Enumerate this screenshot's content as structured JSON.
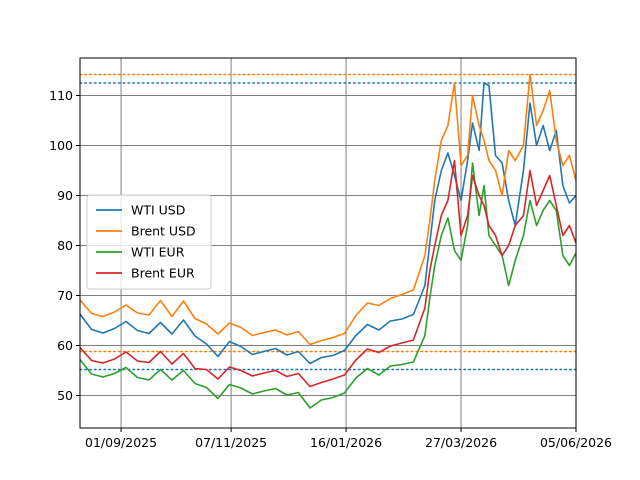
{
  "chart_data": {
    "type": "line",
    "title": "",
    "xlabel": "",
    "ylabel": "",
    "x_range": [
      "2025-08-07",
      "2026-06-05"
    ],
    "ylim": [
      43.5,
      117.5
    ],
    "grid": true,
    "legend_position": "center-left",
    "x_ticks": [
      {
        "date": "2025-09-01",
        "label": "01/09/2025"
      },
      {
        "date": "2025-11-07",
        "label": "07/11/2025"
      },
      {
        "date": "2026-01-16",
        "label": "16/01/2026"
      },
      {
        "date": "2026-03-27",
        "label": "27/03/2026"
      },
      {
        "date": "2026-06-05",
        "label": "05/06/2026"
      }
    ],
    "y_ticks": [
      50,
      60,
      70,
      80,
      90,
      100,
      110
    ],
    "reference_lines": [
      {
        "series": "Brent USD",
        "value": 114.2,
        "color": "#ff7f0e",
        "style": "dotted"
      },
      {
        "series": "WTI USD",
        "value": 112.5,
        "color": "#1f77b4",
        "style": "dotted"
      },
      {
        "series": "Brent USD",
        "value": 58.8,
        "color": "#ff7f0e",
        "style": "dotted"
      },
      {
        "series": "WTI USD",
        "value": 55.2,
        "color": "#1f77b4",
        "style": "dotted"
      }
    ],
    "series": [
      {
        "name": "WTI USD",
        "color": "#1f77b4",
        "points": [
          [
            "2025-08-07",
            66.3
          ],
          [
            "2025-08-14",
            63.2
          ],
          [
            "2025-08-21",
            62.5
          ],
          [
            "2025-08-28",
            63.4
          ],
          [
            "2025-09-04",
            64.8
          ],
          [
            "2025-09-11",
            63.0
          ],
          [
            "2025-09-18",
            62.4
          ],
          [
            "2025-09-25",
            64.6
          ],
          [
            "2025-10-02",
            62.3
          ],
          [
            "2025-10-09",
            65.1
          ],
          [
            "2025-10-16",
            61.9
          ],
          [
            "2025-10-23",
            60.3
          ],
          [
            "2025-10-30",
            57.8
          ],
          [
            "2025-11-06",
            60.8
          ],
          [
            "2025-11-13",
            59.8
          ],
          [
            "2025-11-20",
            58.2
          ],
          [
            "2025-11-27",
            58.8
          ],
          [
            "2025-12-04",
            59.4
          ],
          [
            "2025-12-11",
            58.1
          ],
          [
            "2025-12-18",
            58.8
          ],
          [
            "2025-12-25",
            56.4
          ],
          [
            "2026-01-01",
            57.6
          ],
          [
            "2026-01-08",
            58.0
          ],
          [
            "2026-01-15",
            59.0
          ],
          [
            "2026-01-22",
            62.0
          ],
          [
            "2026-01-29",
            64.2
          ],
          [
            "2026-02-05",
            63.1
          ],
          [
            "2026-02-12",
            64.9
          ],
          [
            "2026-02-19",
            65.3
          ],
          [
            "2026-02-26",
            66.2
          ],
          [
            "2026-03-05",
            72.0
          ],
          [
            "2026-03-08",
            80.5
          ],
          [
            "2026-03-11",
            89.0
          ],
          [
            "2026-03-15",
            95.0
          ],
          [
            "2026-03-19",
            98.5
          ],
          [
            "2026-03-23",
            94.0
          ],
          [
            "2026-03-27",
            89.0
          ],
          [
            "2026-03-31",
            97.0
          ],
          [
            "2026-04-03",
            104.5
          ],
          [
            "2026-04-07",
            99.0
          ],
          [
            "2026-04-10",
            112.5
          ],
          [
            "2026-04-13",
            112.0
          ],
          [
            "2026-04-17",
            98.0
          ],
          [
            "2026-04-21",
            96.5
          ],
          [
            "2026-04-25",
            89.0
          ],
          [
            "2026-04-29",
            84.0
          ],
          [
            "2026-05-04",
            95.0
          ],
          [
            "2026-05-08",
            108.5
          ],
          [
            "2026-05-12",
            100.0
          ],
          [
            "2026-05-16",
            104.0
          ],
          [
            "2026-05-20",
            99.0
          ],
          [
            "2026-05-24",
            103.0
          ],
          [
            "2026-05-28",
            92.0
          ],
          [
            "2026-06-01",
            88.5
          ],
          [
            "2026-06-05",
            90.0
          ]
        ]
      },
      {
        "name": "Brent USD",
        "color": "#ff7f0e",
        "points": [
          [
            "2025-08-07",
            69.1
          ],
          [
            "2025-08-14",
            66.4
          ],
          [
            "2025-08-21",
            65.8
          ],
          [
            "2025-08-28",
            66.7
          ],
          [
            "2025-09-04",
            68.1
          ],
          [
            "2025-09-11",
            66.5
          ],
          [
            "2025-09-18",
            66.1
          ],
          [
            "2025-09-25",
            69.0
          ],
          [
            "2025-10-02",
            65.8
          ],
          [
            "2025-10-09",
            68.9
          ],
          [
            "2025-10-16",
            65.4
          ],
          [
            "2025-10-23",
            64.3
          ],
          [
            "2025-10-30",
            62.3
          ],
          [
            "2025-11-06",
            64.5
          ],
          [
            "2025-11-13",
            63.6
          ],
          [
            "2025-11-20",
            62.0
          ],
          [
            "2025-11-27",
            62.6
          ],
          [
            "2025-12-04",
            63.1
          ],
          [
            "2025-12-11",
            62.1
          ],
          [
            "2025-12-18",
            62.8
          ],
          [
            "2025-12-25",
            60.2
          ],
          [
            "2026-01-01",
            61.0
          ],
          [
            "2026-01-08",
            61.6
          ],
          [
            "2026-01-15",
            62.4
          ],
          [
            "2026-01-22",
            66.0
          ],
          [
            "2026-01-29",
            68.5
          ],
          [
            "2026-02-05",
            68.0
          ],
          [
            "2026-02-12",
            69.4
          ],
          [
            "2026-02-19",
            70.2
          ],
          [
            "2026-02-26",
            71.1
          ],
          [
            "2026-03-05",
            78.0
          ],
          [
            "2026-03-08",
            85.0
          ],
          [
            "2026-03-11",
            93.0
          ],
          [
            "2026-03-15",
            101.0
          ],
          [
            "2026-03-19",
            104.0
          ],
          [
            "2026-03-23",
            112.5
          ],
          [
            "2026-03-27",
            96.0
          ],
          [
            "2026-03-31",
            98.0
          ],
          [
            "2026-04-03",
            110.0
          ],
          [
            "2026-04-07",
            104.0
          ],
          [
            "2026-04-10",
            101.0
          ],
          [
            "2026-04-13",
            97.0
          ],
          [
            "2026-04-17",
            95.0
          ],
          [
            "2026-04-21",
            90.0
          ],
          [
            "2026-04-25",
            99.0
          ],
          [
            "2026-04-29",
            97.0
          ],
          [
            "2026-05-04",
            100.0
          ],
          [
            "2026-05-08",
            114.2
          ],
          [
            "2026-05-12",
            104.0
          ],
          [
            "2026-05-16",
            107.0
          ],
          [
            "2026-05-20",
            111.0
          ],
          [
            "2026-05-24",
            101.0
          ],
          [
            "2026-05-28",
            96.0
          ],
          [
            "2026-06-01",
            98.0
          ],
          [
            "2026-06-05",
            93.0
          ]
        ]
      },
      {
        "name": "WTI EUR",
        "color": "#2ca02c",
        "points": [
          [
            "2025-08-07",
            57.2
          ],
          [
            "2025-08-14",
            54.3
          ],
          [
            "2025-08-21",
            53.7
          ],
          [
            "2025-08-28",
            54.4
          ],
          [
            "2025-09-04",
            55.6
          ],
          [
            "2025-09-11",
            53.6
          ],
          [
            "2025-09-18",
            53.1
          ],
          [
            "2025-09-25",
            55.2
          ],
          [
            "2025-10-02",
            53.1
          ],
          [
            "2025-10-09",
            55.0
          ],
          [
            "2025-10-16",
            52.4
          ],
          [
            "2025-10-23",
            51.6
          ],
          [
            "2025-10-30",
            49.4
          ],
          [
            "2025-11-06",
            52.2
          ],
          [
            "2025-11-13",
            51.5
          ],
          [
            "2025-11-20",
            50.3
          ],
          [
            "2025-11-27",
            50.9
          ],
          [
            "2025-12-04",
            51.4
          ],
          [
            "2025-12-11",
            50.1
          ],
          [
            "2025-12-18",
            50.6
          ],
          [
            "2025-12-25",
            47.5
          ],
          [
            "2026-01-01",
            49.1
          ],
          [
            "2026-01-08",
            49.6
          ],
          [
            "2026-01-15",
            50.5
          ],
          [
            "2026-01-22",
            53.5
          ],
          [
            "2026-01-29",
            55.4
          ],
          [
            "2026-02-05",
            54.1
          ],
          [
            "2026-02-12",
            55.9
          ],
          [
            "2026-02-19",
            56.2
          ],
          [
            "2026-02-26",
            56.7
          ],
          [
            "2026-03-05",
            62.0
          ],
          [
            "2026-03-08",
            69.5
          ],
          [
            "2026-03-11",
            76.0
          ],
          [
            "2026-03-15",
            82.0
          ],
          [
            "2026-03-19",
            85.5
          ],
          [
            "2026-03-23",
            79.0
          ],
          [
            "2026-03-27",
            77.0
          ],
          [
            "2026-03-31",
            84.0
          ],
          [
            "2026-04-03",
            96.5
          ],
          [
            "2026-04-07",
            86.0
          ],
          [
            "2026-04-10",
            92.0
          ],
          [
            "2026-04-13",
            82.0
          ],
          [
            "2026-04-17",
            80.0
          ],
          [
            "2026-04-21",
            78.0
          ],
          [
            "2026-04-25",
            72.0
          ],
          [
            "2026-04-29",
            77.0
          ],
          [
            "2026-05-04",
            82.0
          ],
          [
            "2026-05-08",
            89.0
          ],
          [
            "2026-05-12",
            84.0
          ],
          [
            "2026-05-16",
            87.0
          ],
          [
            "2026-05-20",
            89.0
          ],
          [
            "2026-05-24",
            87.0
          ],
          [
            "2026-05-28",
            78.0
          ],
          [
            "2026-06-01",
            76.0
          ],
          [
            "2026-06-05",
            78.5
          ]
        ]
      },
      {
        "name": "Brent EUR",
        "color": "#d62728",
        "points": [
          [
            "2025-08-07",
            59.6
          ],
          [
            "2025-08-14",
            57.0
          ],
          [
            "2025-08-21",
            56.5
          ],
          [
            "2025-08-28",
            57.3
          ],
          [
            "2025-09-04",
            58.7
          ],
          [
            "2025-09-11",
            56.9
          ],
          [
            "2025-09-18",
            56.6
          ],
          [
            "2025-09-25",
            58.8
          ],
          [
            "2025-10-02",
            56.3
          ],
          [
            "2025-10-09",
            58.4
          ],
          [
            "2025-10-16",
            55.4
          ],
          [
            "2025-10-23",
            55.2
          ],
          [
            "2025-10-30",
            53.3
          ],
          [
            "2025-11-06",
            55.7
          ],
          [
            "2025-11-13",
            55.0
          ],
          [
            "2025-11-20",
            53.9
          ],
          [
            "2025-11-27",
            54.5
          ],
          [
            "2025-12-04",
            55.0
          ],
          [
            "2025-12-11",
            53.8
          ],
          [
            "2025-12-18",
            54.4
          ],
          [
            "2025-12-25",
            51.8
          ],
          [
            "2026-01-01",
            52.6
          ],
          [
            "2026-01-08",
            53.3
          ],
          [
            "2026-01-15",
            54.1
          ],
          [
            "2026-01-22",
            57.1
          ],
          [
            "2026-01-29",
            59.3
          ],
          [
            "2026-02-05",
            58.6
          ],
          [
            "2026-02-12",
            59.9
          ],
          [
            "2026-02-19",
            60.5
          ],
          [
            "2026-02-26",
            61.1
          ],
          [
            "2026-03-05",
            67.5
          ],
          [
            "2026-03-08",
            75.0
          ],
          [
            "2026-03-11",
            80.0
          ],
          [
            "2026-03-15",
            86.0
          ],
          [
            "2026-03-19",
            89.0
          ],
          [
            "2026-03-23",
            97.0
          ],
          [
            "2026-03-27",
            82.0
          ],
          [
            "2026-03-31",
            86.0
          ],
          [
            "2026-04-03",
            94.0
          ],
          [
            "2026-04-07",
            90.0
          ],
          [
            "2026-04-10",
            88.0
          ],
          [
            "2026-04-13",
            84.0
          ],
          [
            "2026-04-17",
            82.0
          ],
          [
            "2026-04-21",
            78.0
          ],
          [
            "2026-04-25",
            80.0
          ],
          [
            "2026-04-29",
            84.0
          ],
          [
            "2026-05-04",
            86.0
          ],
          [
            "2026-05-08",
            95.0
          ],
          [
            "2026-05-12",
            88.0
          ],
          [
            "2026-05-16",
            91.0
          ],
          [
            "2026-05-20",
            94.0
          ],
          [
            "2026-05-24",
            88.0
          ],
          [
            "2026-05-28",
            82.0
          ],
          [
            "2026-06-01",
            84.0
          ],
          [
            "2026-06-05",
            80.5
          ]
        ]
      }
    ]
  }
}
